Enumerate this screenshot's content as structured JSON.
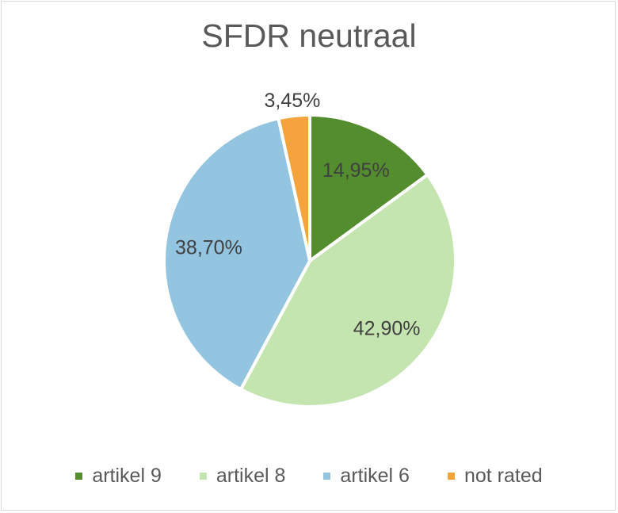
{
  "chart_data": {
    "type": "pie",
    "title": "SFDR neutraal",
    "categories": [
      "artikel 9",
      "artikel 8",
      "artikel 6",
      "not rated"
    ],
    "values": [
      14.95,
      42.9,
      38.7,
      3.45
    ],
    "labels": [
      "14,95%",
      "42,90%",
      "38,70%",
      "3,45%"
    ],
    "colors": [
      "#538D2E",
      "#C5E5B0",
      "#93C4E0",
      "#F5A33C"
    ],
    "start_angle": "12 o'clock",
    "direction": "clockwise",
    "legend_position": "bottom"
  }
}
